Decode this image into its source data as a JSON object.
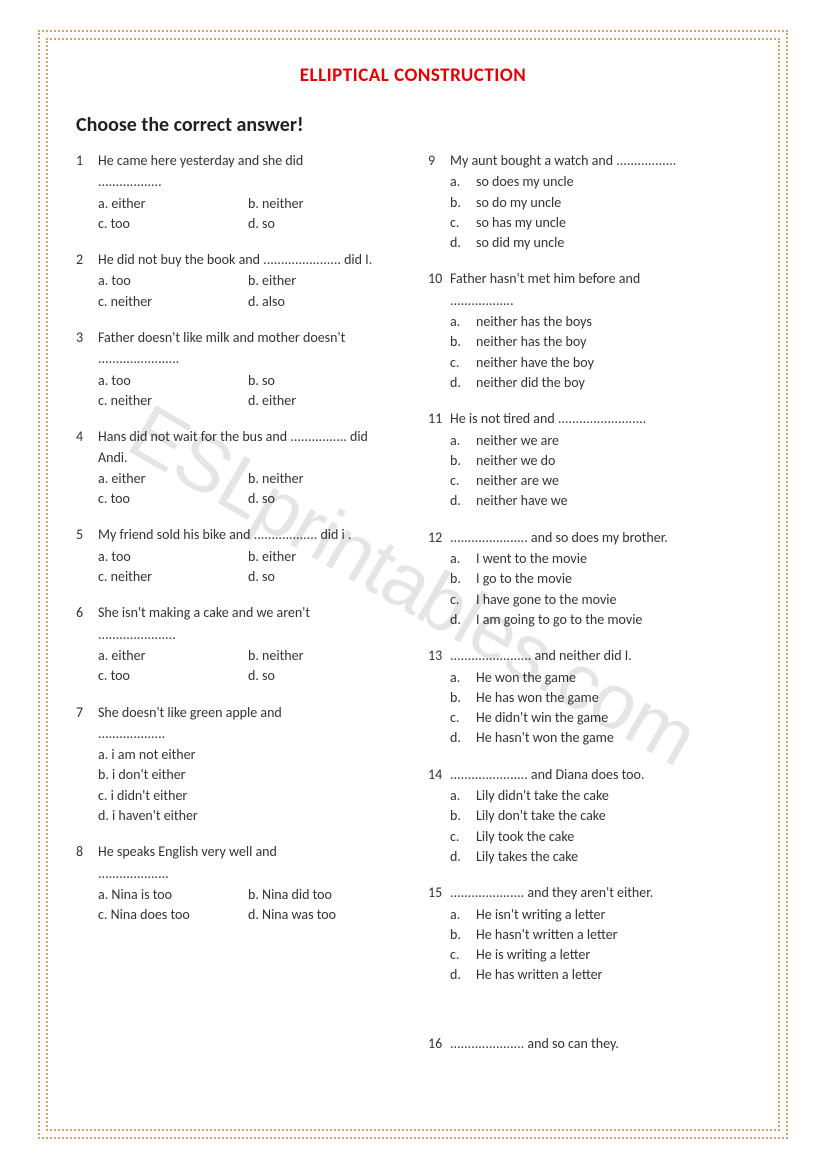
{
  "title": "ELLIPTICAL CONSTRUCTION",
  "instruction": "Choose the correct answer!",
  "watermark": "ESLprintables.com",
  "left": [
    {
      "n": "1",
      "stem": "He came here yesterday and she did",
      "blank": "..................",
      "layout": "inline",
      "opts": [
        "a. either",
        "b. neither",
        "c. too",
        "d. so"
      ]
    },
    {
      "n": "2",
      "stem": "He did not buy the book and ...................... did I.",
      "layout": "inline",
      "opts": [
        "a. too",
        "b. either",
        "c. neither",
        "d. also"
      ]
    },
    {
      "n": "3",
      "stem": "Father doesn't like milk and mother doesn't",
      "blank": ".......................",
      "layout": "inline",
      "opts": [
        "a. too",
        "b. so",
        "c. neither",
        "d. either"
      ]
    },
    {
      "n": "4",
      "stem": "Hans did not wait for the bus and ................ did Andi.",
      "layout": "inline",
      "opts": [
        "a. either",
        "b. neither",
        "c. too",
        "d. so"
      ]
    },
    {
      "n": "5",
      "stem": "My friend sold his bike and .................. did i .",
      "layout": "inline",
      "opts": [
        "a. too",
        "b. either",
        "c. neither",
        "d. so"
      ]
    },
    {
      "n": "6",
      "stem": "She isn't making a cake and we aren't",
      "blank": "......................",
      "layout": "inline",
      "opts": [
        "a. either",
        "b. neither",
        "c. too",
        "d. so"
      ]
    },
    {
      "n": "7",
      "stem": "She doesn't like  green apple and",
      "blank": "...................",
      "layout": "stack",
      "opts": [
        "a. i am not either",
        "b. i don't either",
        "c. i didn't either",
        "d. i haven't either"
      ]
    },
    {
      "n": "8",
      "stem": "He speaks English very well and",
      "blank": "....................",
      "layout": "inline",
      "opts": [
        "a. Nina is too",
        "b. Nina did too",
        "c. Nina does too",
        "d. Nina was too"
      ]
    }
  ],
  "right": [
    {
      "n": "9",
      "stem": "My aunt bought a watch and .................",
      "layout": "stack-letter",
      "opts": [
        "so does my uncle",
        "so do my uncle",
        "so has my uncle",
        "so did my uncle"
      ]
    },
    {
      "n": "10",
      "stem": "Father hasn't met him before and",
      "blank": "..................",
      "layout": "stack-letter",
      "opts": [
        "neither has the boys",
        "neither has the boy",
        "neither have the boy",
        "neither did the boy"
      ]
    },
    {
      "n": "11",
      "stem": "He is not tired and .........................",
      "layout": "stack-letter",
      "opts": [
        "neither we are",
        "neither we do",
        "neither are we",
        "neither have we"
      ]
    },
    {
      "n": "12",
      "stem": "...................... and so does my brother.",
      "layout": "stack-letter",
      "opts": [
        "I went to the movie",
        "I go to the movie",
        "I have gone to the movie",
        "I am going to go to the movie"
      ]
    },
    {
      "n": "13",
      "stem": "....................... and neither did I.",
      "layout": "stack-letter",
      "opts": [
        "He won the game",
        "He has won the game",
        "He didn't win the game",
        "He hasn't won the game"
      ]
    },
    {
      "n": "14",
      "stem": "...................... and Diana does too.",
      "layout": "stack-letter",
      "opts": [
        "Lily didn't take the cake",
        "Lily don't take the cake",
        "Lily took the cake",
        "Lily takes the cake"
      ]
    },
    {
      "n": "15",
      "stem": "..................... and they aren't either.",
      "layout": "stack-letter",
      "opts": [
        "He isn't writing a letter",
        "He hasn't written a letter",
        "He is writing a letter",
        "He has written a letter"
      ]
    },
    {
      "n": "16",
      "stem": "..................... and so can they.",
      "layout": "none",
      "opts": []
    }
  ],
  "letters": [
    "a.",
    "b.",
    "c.",
    "d."
  ]
}
